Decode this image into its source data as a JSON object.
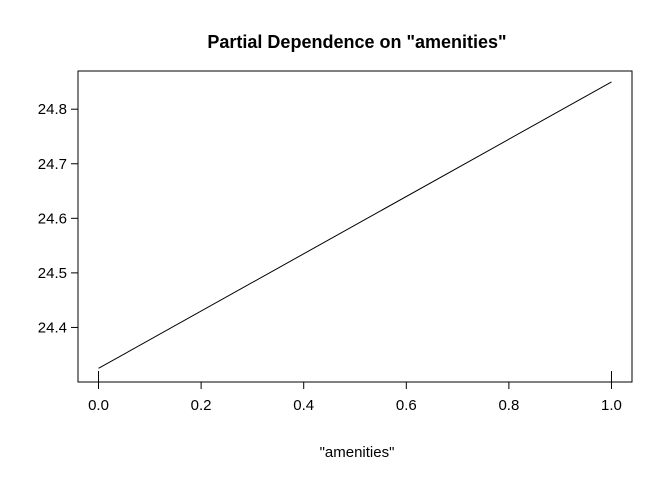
{
  "chart_data": {
    "type": "line",
    "title": "Partial Dependence on \"amenities\"",
    "xlabel": "\"amenities\"",
    "ylabel": "",
    "xlim": [
      -0.04,
      1.04
    ],
    "ylim": [
      24.3,
      24.87
    ],
    "x_ticks": [
      0.0,
      0.2,
      0.4,
      0.6,
      0.8,
      1.0
    ],
    "x_tick_labels": [
      "0.0",
      "0.2",
      "0.4",
      "0.6",
      "0.8",
      "1.0"
    ],
    "y_ticks": [
      24.4,
      24.5,
      24.6,
      24.7,
      24.8
    ],
    "y_tick_labels": [
      "24.4",
      "24.5",
      "24.6",
      "24.7",
      "24.8"
    ],
    "grid": false,
    "series": [
      {
        "x": [
          0.0,
          1.0
        ],
        "y": [
          24.325,
          24.85
        ]
      }
    ],
    "rug": [
      0.0,
      1.0
    ],
    "line_color": "#000000"
  }
}
